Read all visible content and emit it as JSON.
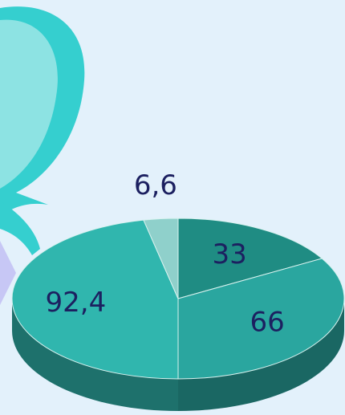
{
  "chart_data": {
    "type": "pie",
    "values": [
      33,
      66,
      92.4,
      6.6
    ],
    "value_labels": [
      "33",
      "66",
      "92,4",
      "6,6"
    ],
    "colors": [
      "#1f8c83",
      "#2aa69f",
      "#30b6ae",
      "#8fd0cb"
    ]
  }
}
